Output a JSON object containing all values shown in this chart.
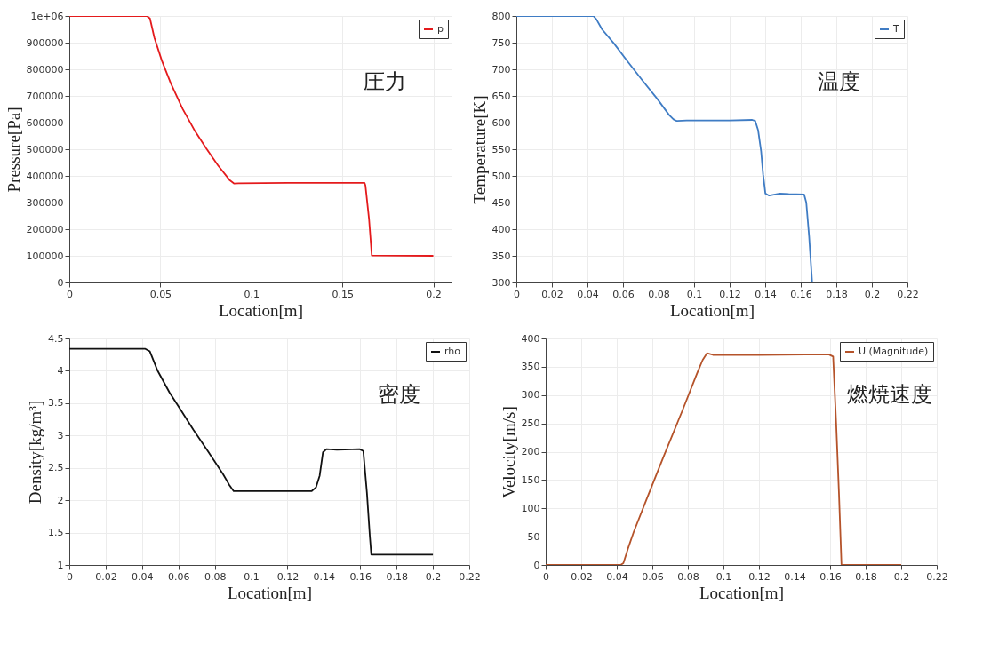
{
  "chart_data": [
    {
      "type": "line",
      "xlabel": "Location[m]",
      "ylabel": "Pressure[Pa]",
      "xlim": [
        0,
        0.21
      ],
      "xticks": [
        0,
        0.05,
        0.1,
        0.15,
        0.2
      ],
      "ylim": [
        0,
        1000000
      ],
      "yticks": [
        0,
        100000,
        200000,
        300000,
        400000,
        500000,
        600000,
        700000,
        800000,
        900000,
        {
          "value": 1000000,
          "label": "1e+06"
        }
      ],
      "grid": true,
      "legend": "top right",
      "annotations": [
        "圧力"
      ],
      "series": [
        {
          "name": "p",
          "color": "#e41a1c",
          "x": [
            0,
            0.0426,
            0.0443,
            0.0467,
            0.0508,
            0.0557,
            0.0622,
            0.0687,
            0.0752,
            0.0817,
            0.0882,
            0.0906,
            0.093,
            0.12,
            0.15,
            0.1622,
            0.1627,
            0.1647,
            0.1662,
            0.2
          ],
          "values": [
            1000000,
            1000000,
            991000,
            919000,
            833000,
            748000,
            652000,
            572000,
            503000,
            439000,
            383000,
            371000,
            372000,
            374000,
            374000,
            374000,
            364000,
            236000,
            101000,
            100000
          ]
        }
      ]
    },
    {
      "type": "line",
      "xlabel": "Location[m]",
      "ylabel": "Temperature[K]",
      "xlim": [
        0,
        0.22
      ],
      "xticks": [
        0,
        0.02,
        0.04,
        0.06,
        0.08,
        0.1,
        0.12,
        0.14,
        0.16,
        0.18,
        0.2,
        0.22
      ],
      "ylim": [
        300,
        800
      ],
      "yticks": [
        300,
        350,
        400,
        450,
        500,
        550,
        600,
        650,
        700,
        750,
        800
      ],
      "grid": true,
      "legend": "top right",
      "annotations": [
        "温度"
      ],
      "series": [
        {
          "name": "T",
          "color": "#3f7cc4",
          "x": [
            0,
            0.0433,
            0.045,
            0.0482,
            0.0548,
            0.063,
            0.0712,
            0.0794,
            0.086,
            0.0884,
            0.0902,
            0.0958,
            0.12,
            0.1327,
            0.1344,
            0.136,
            0.1377,
            0.1388,
            0.1401,
            0.1422,
            0.1483,
            0.1532,
            0.1619,
            0.1631,
            0.1647,
            0.1664,
            0.2
          ],
          "values": [
            800,
            800,
            794,
            775,
            749,
            713,
            678,
            644,
            614,
            606,
            603,
            604,
            604,
            605,
            603,
            586,
            546,
            503,
            467,
            463,
            467,
            466,
            465,
            450,
            386,
            300,
            300
          ]
        }
      ]
    },
    {
      "type": "line",
      "xlabel": "Location[m]",
      "ylabel": "Density[kg/m³]",
      "xlim": [
        0,
        0.22
      ],
      "xticks": [
        0,
        0.02,
        0.04,
        0.06,
        0.08,
        0.1,
        0.12,
        0.14,
        0.16,
        0.18,
        0.2,
        0.22
      ],
      "ylim": [
        1,
        4.5
      ],
      "yticks": [
        1,
        1.5,
        2,
        2.5,
        3,
        3.5,
        4,
        4.5
      ],
      "grid": true,
      "legend": "top right",
      "annotations": [
        "密度"
      ],
      "series": [
        {
          "name": "rho",
          "color": "#111111",
          "x": [
            0,
            0.0418,
            0.0443,
            0.0484,
            0.055,
            0.0616,
            0.0682,
            0.0764,
            0.0846,
            0.0879,
            0.0904,
            0.0945,
            0.1176,
            0.1332,
            0.1357,
            0.1377,
            0.1395,
            0.1414,
            0.1472,
            0.1596,
            0.1617,
            0.1637,
            0.1653,
            0.1661,
            0.2
          ],
          "values": [
            4.34,
            4.34,
            4.3,
            4.01,
            3.67,
            3.38,
            3.09,
            2.75,
            2.4,
            2.24,
            2.14,
            2.14,
            2.14,
            2.14,
            2.2,
            2.38,
            2.74,
            2.79,
            2.78,
            2.79,
            2.76,
            2.11,
            1.44,
            1.16,
            1.16
          ]
        }
      ]
    },
    {
      "type": "line",
      "xlabel": "Location[m]",
      "ylabel": "Velocity[m/s]",
      "xlim": [
        0,
        0.22
      ],
      "xticks": [
        0,
        0.02,
        0.04,
        0.06,
        0.08,
        0.1,
        0.12,
        0.14,
        0.16,
        0.18,
        0.2,
        0.22
      ],
      "ylim": [
        0,
        400
      ],
      "yticks": [
        0,
        50,
        100,
        150,
        200,
        250,
        300,
        350,
        400
      ],
      "grid": true,
      "legend": "top right",
      "annotations": [
        "燃焼速度"
      ],
      "series": [
        {
          "name": "U (Magnitude)",
          "color": "#b5532a",
          "x": [
            0,
            0.0421,
            0.0437,
            0.0462,
            0.0495,
            0.0569,
            0.0668,
            0.0767,
            0.085,
            0.0883,
            0.0908,
            0.0941,
            0.1197,
            0.1592,
            0.1617,
            0.1634,
            0.165,
            0.1664,
            0.2
          ],
          "values": [
            0,
            0,
            3,
            28,
            58,
            117,
            195,
            271,
            337,
            362,
            374,
            371,
            371,
            372,
            368,
            251,
            125,
            0,
            0
          ]
        }
      ]
    }
  ]
}
